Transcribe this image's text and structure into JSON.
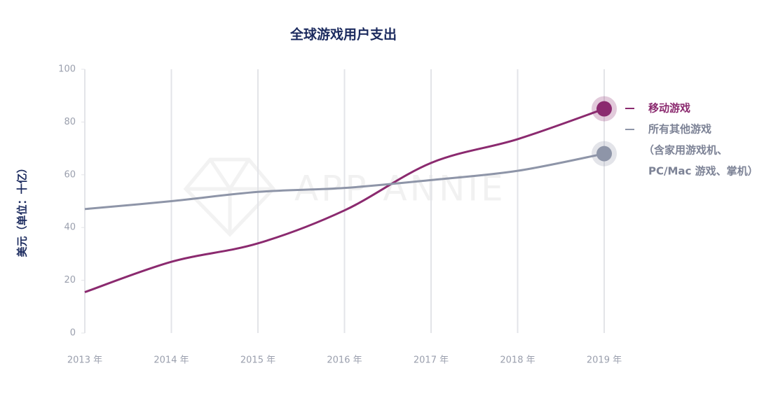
{
  "chart_data": {
    "type": "line",
    "title": "全球游戏用户支出",
    "y_label": "美元（单位：十亿）",
    "watermark": "APP ANNIE",
    "categories": [
      "2013 年",
      "2014 年",
      "2015 年",
      "2016 年",
      "2017 年",
      "2018 年",
      "2019 年"
    ],
    "series": [
      {
        "name": "移动游戏",
        "color": "#8b2a6f",
        "values": [
          15.5,
          27,
          34,
          46.5,
          64.5,
          73.5,
          85
        ]
      },
      {
        "name": "所有其他游戏",
        "color": "#8e95a8",
        "values": [
          47,
          50,
          53.5,
          55,
          58,
          61.5,
          68
        ]
      }
    ],
    "legend_note": [
      "（含家用游戏机、",
      "PC/Mac 游戏、掌机）"
    ],
    "ylim": [
      0,
      100
    ],
    "yticks": [
      0,
      20,
      40,
      60,
      80,
      100
    ],
    "grid": "vertical"
  }
}
